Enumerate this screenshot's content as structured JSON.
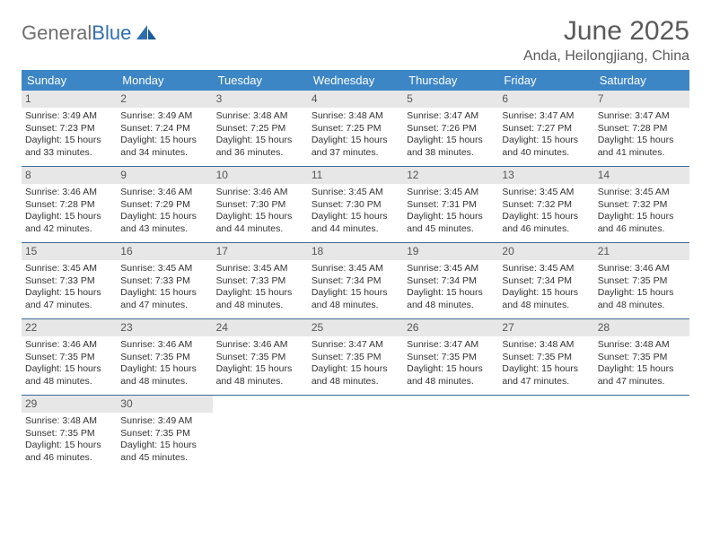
{
  "logo": {
    "word1": "General",
    "word2": "Blue"
  },
  "title": "June 2025",
  "location": "Anda, Heilongjiang, China",
  "colors": {
    "header_bg": "#3d86c6",
    "header_text": "#ffffff",
    "daynum_bg": "#e7e7e7",
    "rule": "#3d6a9a",
    "logo_gray": "#6f6f6f",
    "logo_blue": "#2f6fb0"
  },
  "daysOfWeek": [
    "Sunday",
    "Monday",
    "Tuesday",
    "Wednesday",
    "Thursday",
    "Friday",
    "Saturday"
  ],
  "weeks": [
    [
      {
        "n": "1",
        "sr": "Sunrise: 3:49 AM",
        "ss": "Sunset: 7:23 PM",
        "d1": "Daylight: 15 hours",
        "d2": "and 33 minutes."
      },
      {
        "n": "2",
        "sr": "Sunrise: 3:49 AM",
        "ss": "Sunset: 7:24 PM",
        "d1": "Daylight: 15 hours",
        "d2": "and 34 minutes."
      },
      {
        "n": "3",
        "sr": "Sunrise: 3:48 AM",
        "ss": "Sunset: 7:25 PM",
        "d1": "Daylight: 15 hours",
        "d2": "and 36 minutes."
      },
      {
        "n": "4",
        "sr": "Sunrise: 3:48 AM",
        "ss": "Sunset: 7:25 PM",
        "d1": "Daylight: 15 hours",
        "d2": "and 37 minutes."
      },
      {
        "n": "5",
        "sr": "Sunrise: 3:47 AM",
        "ss": "Sunset: 7:26 PM",
        "d1": "Daylight: 15 hours",
        "d2": "and 38 minutes."
      },
      {
        "n": "6",
        "sr": "Sunrise: 3:47 AM",
        "ss": "Sunset: 7:27 PM",
        "d1": "Daylight: 15 hours",
        "d2": "and 40 minutes."
      },
      {
        "n": "7",
        "sr": "Sunrise: 3:47 AM",
        "ss": "Sunset: 7:28 PM",
        "d1": "Daylight: 15 hours",
        "d2": "and 41 minutes."
      }
    ],
    [
      {
        "n": "8",
        "sr": "Sunrise: 3:46 AM",
        "ss": "Sunset: 7:28 PM",
        "d1": "Daylight: 15 hours",
        "d2": "and 42 minutes."
      },
      {
        "n": "9",
        "sr": "Sunrise: 3:46 AM",
        "ss": "Sunset: 7:29 PM",
        "d1": "Daylight: 15 hours",
        "d2": "and 43 minutes."
      },
      {
        "n": "10",
        "sr": "Sunrise: 3:46 AM",
        "ss": "Sunset: 7:30 PM",
        "d1": "Daylight: 15 hours",
        "d2": "and 44 minutes."
      },
      {
        "n": "11",
        "sr": "Sunrise: 3:45 AM",
        "ss": "Sunset: 7:30 PM",
        "d1": "Daylight: 15 hours",
        "d2": "and 44 minutes."
      },
      {
        "n": "12",
        "sr": "Sunrise: 3:45 AM",
        "ss": "Sunset: 7:31 PM",
        "d1": "Daylight: 15 hours",
        "d2": "and 45 minutes."
      },
      {
        "n": "13",
        "sr": "Sunrise: 3:45 AM",
        "ss": "Sunset: 7:32 PM",
        "d1": "Daylight: 15 hours",
        "d2": "and 46 minutes."
      },
      {
        "n": "14",
        "sr": "Sunrise: 3:45 AM",
        "ss": "Sunset: 7:32 PM",
        "d1": "Daylight: 15 hours",
        "d2": "and 46 minutes."
      }
    ],
    [
      {
        "n": "15",
        "sr": "Sunrise: 3:45 AM",
        "ss": "Sunset: 7:33 PM",
        "d1": "Daylight: 15 hours",
        "d2": "and 47 minutes."
      },
      {
        "n": "16",
        "sr": "Sunrise: 3:45 AM",
        "ss": "Sunset: 7:33 PM",
        "d1": "Daylight: 15 hours",
        "d2": "and 47 minutes."
      },
      {
        "n": "17",
        "sr": "Sunrise: 3:45 AM",
        "ss": "Sunset: 7:33 PM",
        "d1": "Daylight: 15 hours",
        "d2": "and 48 minutes."
      },
      {
        "n": "18",
        "sr": "Sunrise: 3:45 AM",
        "ss": "Sunset: 7:34 PM",
        "d1": "Daylight: 15 hours",
        "d2": "and 48 minutes."
      },
      {
        "n": "19",
        "sr": "Sunrise: 3:45 AM",
        "ss": "Sunset: 7:34 PM",
        "d1": "Daylight: 15 hours",
        "d2": "and 48 minutes."
      },
      {
        "n": "20",
        "sr": "Sunrise: 3:45 AM",
        "ss": "Sunset: 7:34 PM",
        "d1": "Daylight: 15 hours",
        "d2": "and 48 minutes."
      },
      {
        "n": "21",
        "sr": "Sunrise: 3:46 AM",
        "ss": "Sunset: 7:35 PM",
        "d1": "Daylight: 15 hours",
        "d2": "and 48 minutes."
      }
    ],
    [
      {
        "n": "22",
        "sr": "Sunrise: 3:46 AM",
        "ss": "Sunset: 7:35 PM",
        "d1": "Daylight: 15 hours",
        "d2": "and 48 minutes."
      },
      {
        "n": "23",
        "sr": "Sunrise: 3:46 AM",
        "ss": "Sunset: 7:35 PM",
        "d1": "Daylight: 15 hours",
        "d2": "and 48 minutes."
      },
      {
        "n": "24",
        "sr": "Sunrise: 3:46 AM",
        "ss": "Sunset: 7:35 PM",
        "d1": "Daylight: 15 hours",
        "d2": "and 48 minutes."
      },
      {
        "n": "25",
        "sr": "Sunrise: 3:47 AM",
        "ss": "Sunset: 7:35 PM",
        "d1": "Daylight: 15 hours",
        "d2": "and 48 minutes."
      },
      {
        "n": "26",
        "sr": "Sunrise: 3:47 AM",
        "ss": "Sunset: 7:35 PM",
        "d1": "Daylight: 15 hours",
        "d2": "and 48 minutes."
      },
      {
        "n": "27",
        "sr": "Sunrise: 3:48 AM",
        "ss": "Sunset: 7:35 PM",
        "d1": "Daylight: 15 hours",
        "d2": "and 47 minutes."
      },
      {
        "n": "28",
        "sr": "Sunrise: 3:48 AM",
        "ss": "Sunset: 7:35 PM",
        "d1": "Daylight: 15 hours",
        "d2": "and 47 minutes."
      }
    ],
    [
      {
        "n": "29",
        "sr": "Sunrise: 3:48 AM",
        "ss": "Sunset: 7:35 PM",
        "d1": "Daylight: 15 hours",
        "d2": "and 46 minutes."
      },
      {
        "n": "30",
        "sr": "Sunrise: 3:49 AM",
        "ss": "Sunset: 7:35 PM",
        "d1": "Daylight: 15 hours",
        "d2": "and 45 minutes."
      },
      {
        "empty": true
      },
      {
        "empty": true
      },
      {
        "empty": true
      },
      {
        "empty": true
      },
      {
        "empty": true
      }
    ]
  ]
}
